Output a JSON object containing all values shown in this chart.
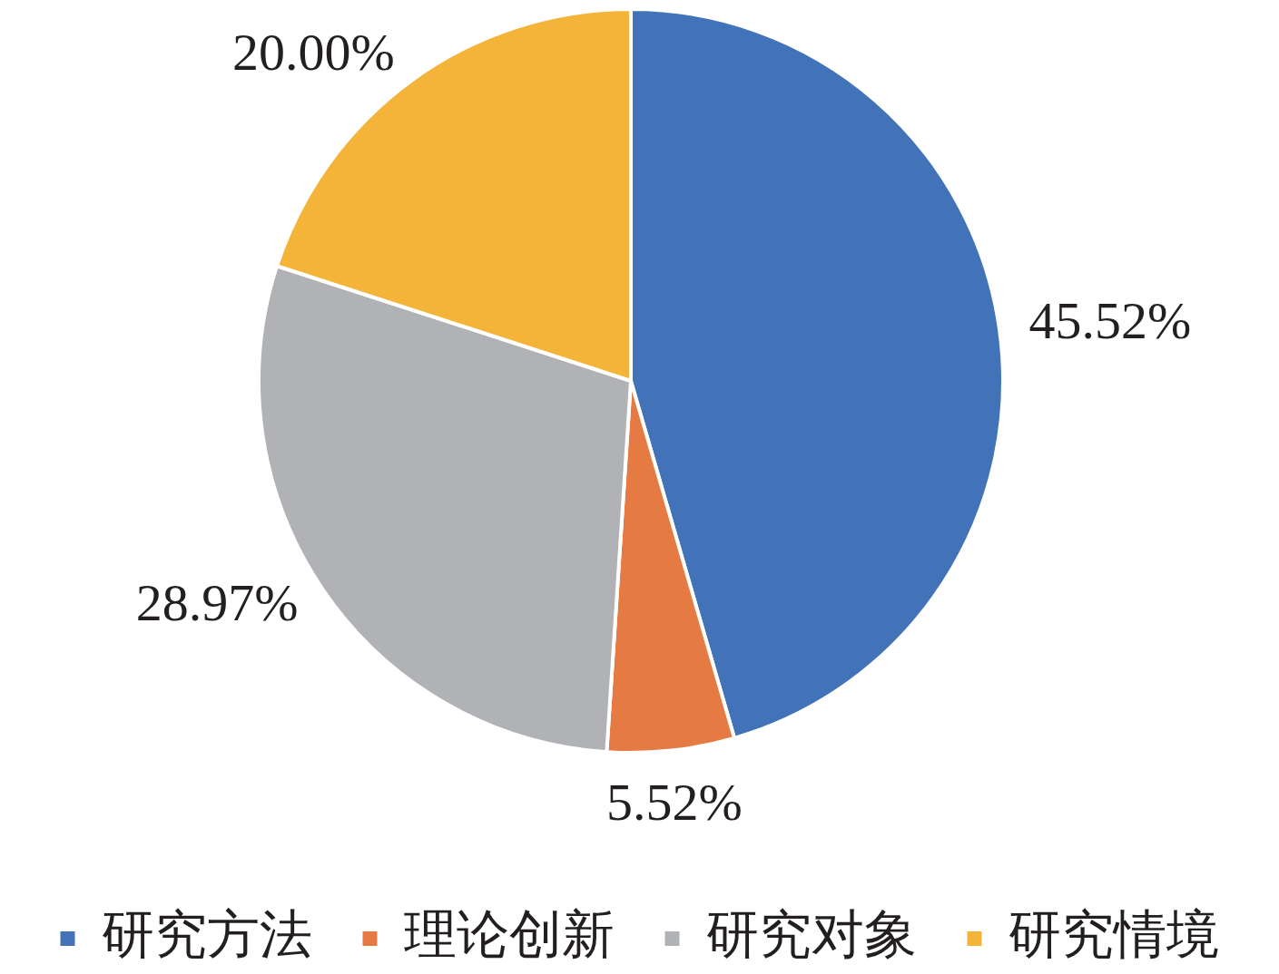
{
  "chart_data": {
    "type": "pie",
    "categories": [
      "研究方法",
      "理论创新",
      "研究对象",
      "研究情境"
    ],
    "values": [
      45.52,
      5.52,
      28.97,
      20.0
    ],
    "colors": [
      "#4273b8",
      "#e57b43",
      "#b1b2b6",
      "#f4b43a"
    ],
    "value_labels": [
      "45.52%",
      "5.52%",
      "28.97%",
      "20.00%"
    ],
    "legend": "bottom"
  }
}
